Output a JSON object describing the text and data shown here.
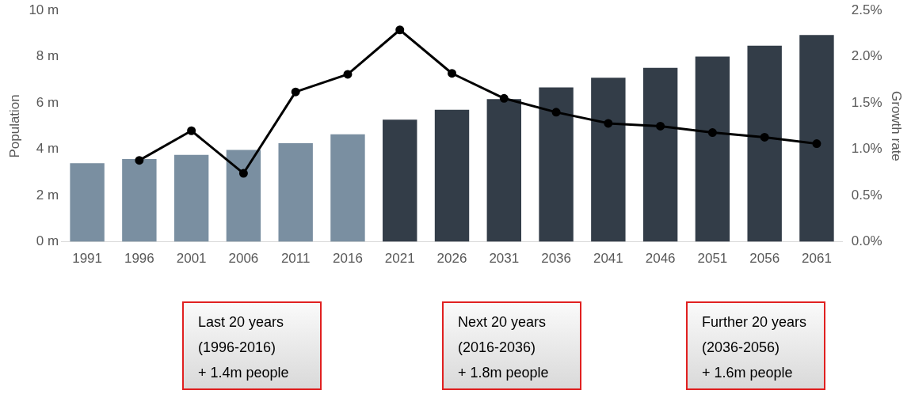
{
  "chart_data": {
    "type": "bar",
    "ylabel": "Population",
    "y2label": "Growth rate",
    "categories": [
      "1991",
      "1996",
      "2001",
      "2006",
      "2011",
      "2016",
      "2021",
      "2026",
      "2031",
      "2036",
      "2041",
      "2046",
      "2051",
      "2056",
      "2061"
    ],
    "series": [
      {
        "colors": [
          "#7a8fa1",
          "#7a8fa1",
          "#7a8fa1",
          "#7a8fa1",
          "#7a8fa1",
          "#7a8fa1",
          "#333d48",
          "#333d48",
          "#333d48",
          "#333d48",
          "#333d48",
          "#333d48",
          "#333d48",
          "#333d48",
          "#333d48"
        ],
        "values": [
          3.4,
          3.58,
          3.76,
          3.97,
          4.26,
          4.65,
          5.28,
          5.71,
          6.17,
          6.67,
          7.09,
          7.52,
          8.01,
          8.48,
          8.94
        ]
      },
      {
        "type": "line",
        "axis": "y2",
        "color": "#000000",
        "marker": "circle",
        "line_style": "solid",
        "values": [
          null,
          0.88,
          1.2,
          0.74,
          1.62,
          1.81,
          2.29,
          1.82,
          1.55,
          1.4,
          1.28,
          1.25,
          1.18,
          1.13,
          1.06
        ]
      }
    ],
    "ylim": [
      0,
      10
    ],
    "yticks": [
      {
        "value": 0,
        "label": "0 m"
      },
      {
        "value": 2,
        "label": "2 m"
      },
      {
        "value": 4,
        "label": "4 m"
      },
      {
        "value": 6,
        "label": "6 m"
      },
      {
        "value": 8,
        "label": "8 m"
      },
      {
        "value": 10,
        "label": "10 m"
      }
    ],
    "y2lim": [
      0,
      2.5
    ],
    "y2ticks": [
      {
        "value": 0,
        "label": "0.0%"
      },
      {
        "value": 0.5,
        "label": "0.5%"
      },
      {
        "value": 1,
        "label": "1.0%"
      },
      {
        "value": 1.5,
        "label": "1.5%"
      },
      {
        "value": 2,
        "label": "2.0%"
      },
      {
        "value": 2.5,
        "label": "2.5%"
      }
    ],
    "grid": false,
    "legend": false,
    "annotations": [
      "Last 20 years\n(1996-2016)\n+ 1.4m people",
      "Next 20 years\n(2016-2036)\n+ 1.8m people",
      "Further 20 years\n(2036-2056)\n+ 1.6m people"
    ]
  }
}
